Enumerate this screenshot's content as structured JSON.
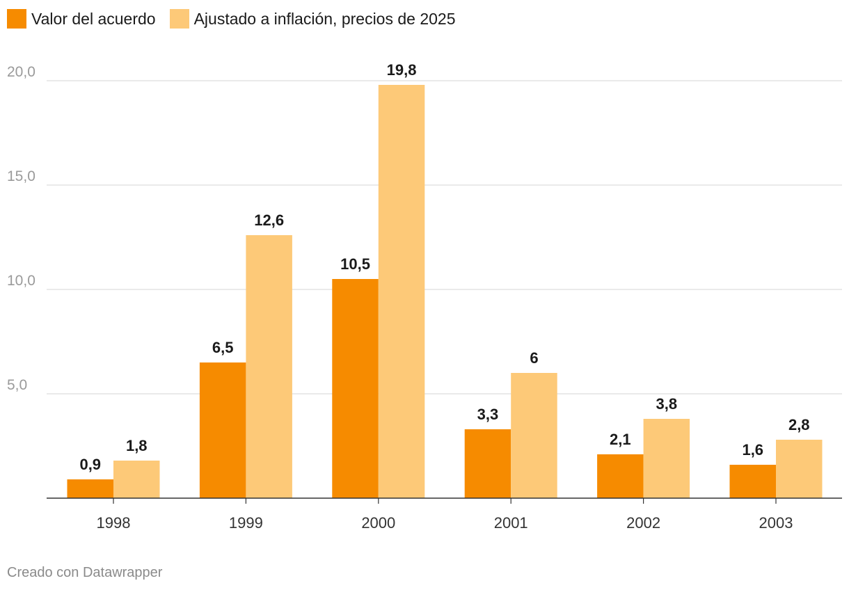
{
  "legend": {
    "series1_label": "Valor del acuerdo",
    "series2_label": "Ajustado a inflación, precios de 2025",
    "series1_color": "#f68b00",
    "series2_color": "#fdc978"
  },
  "footer": {
    "credit": "Creado con Datawrapper"
  },
  "chart_data": {
    "type": "bar",
    "title": "",
    "xlabel": "",
    "ylabel": "",
    "categories": [
      "1998",
      "1999",
      "2000",
      "2001",
      "2002",
      "2003"
    ],
    "series": [
      {
        "name": "Valor del acuerdo",
        "color": "#f68b00",
        "values": [
          0.9,
          6.5,
          10.5,
          3.3,
          2.1,
          1.6
        ],
        "labels": [
          "0,9",
          "6,5",
          "10,5",
          "3,3",
          "2,1",
          "1,6"
        ]
      },
      {
        "name": "Ajustado a inflación, precios de 2025",
        "color": "#fdc978",
        "values": [
          1.8,
          12.6,
          19.8,
          6,
          3.8,
          2.8
        ],
        "labels": [
          "1,8",
          "12,6",
          "19,8",
          "6",
          "3,8",
          "2,8"
        ]
      }
    ],
    "ylim": [
      0,
      20
    ],
    "yticks": [
      5,
      10,
      15,
      20
    ],
    "ytick_labels": [
      "5,0",
      "10,0",
      "15,0",
      "20,0"
    ],
    "grid": true,
    "legend_position": "top-left"
  }
}
